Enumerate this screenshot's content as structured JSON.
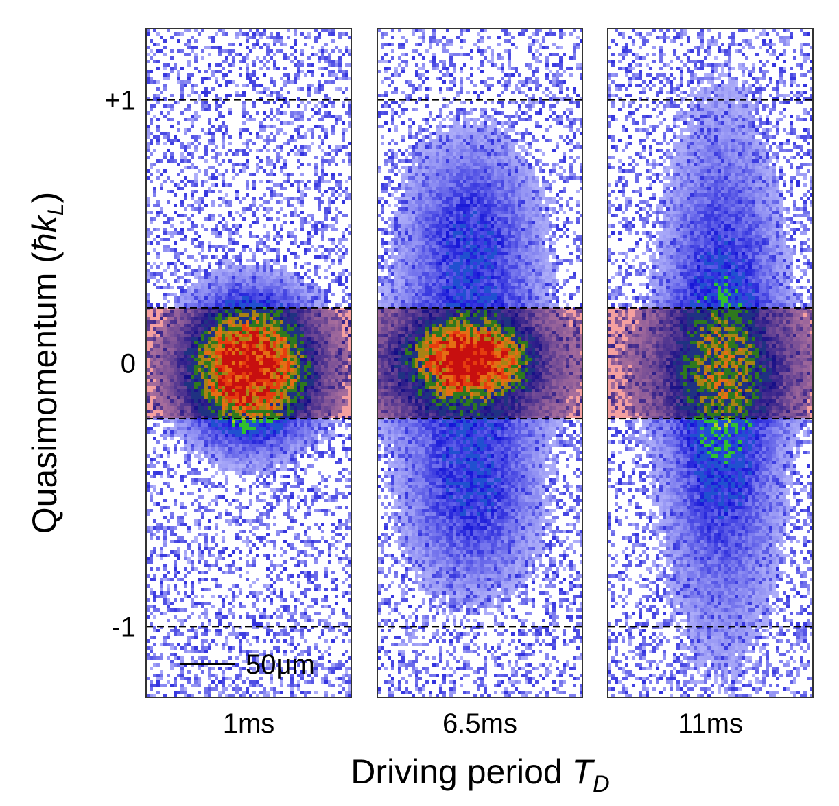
{
  "chart_data": {
    "type": "image",
    "ylabel": [
      "Quasimomentum (",
      "ħk",
      "L",
      ")"
    ],
    "xlabel": [
      "Driving period ",
      "T",
      "D"
    ],
    "categories": [
      "1ms",
      "6.5ms",
      "11ms"
    ],
    "ylim": [
      -1.27,
      1.27
    ],
    "yticks": [
      {
        "value": 1,
        "label": "+1"
      },
      0,
      -1
    ],
    "band": [
      -0.21,
      0.21
    ],
    "band_color": "#f4a0a0",
    "scale_bar": "50μm",
    "grid": true
  }
}
